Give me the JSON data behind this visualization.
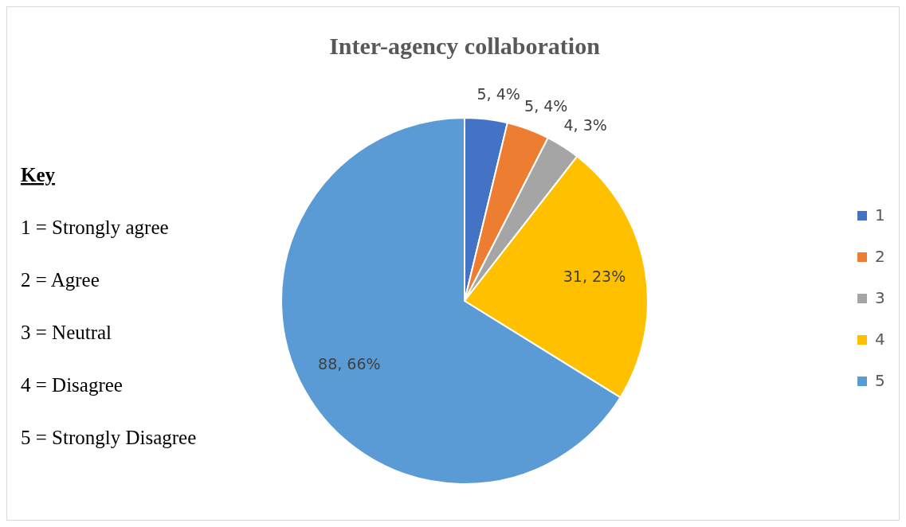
{
  "chart_data": {
    "type": "pie",
    "title": "Inter-agency collaboration",
    "categories": [
      "1",
      "2",
      "3",
      "4",
      "5"
    ],
    "values": [
      5,
      5,
      4,
      31,
      88
    ],
    "colors": [
      "#4472c4",
      "#ed7d31",
      "#a5a5a5",
      "#ffc000",
      "#5b9bd5"
    ],
    "value_labels": [
      "5, 4%",
      "5, 4%",
      "4, 3%",
      "31, 23%",
      "88, 66%"
    ],
    "legend": "right",
    "annotations": [
      "Key",
      "1 = Strongly agree",
      "2 = Agree",
      "3 = Neutral",
      "4 = Disagree",
      "5 = Strongly Disagree"
    ]
  }
}
